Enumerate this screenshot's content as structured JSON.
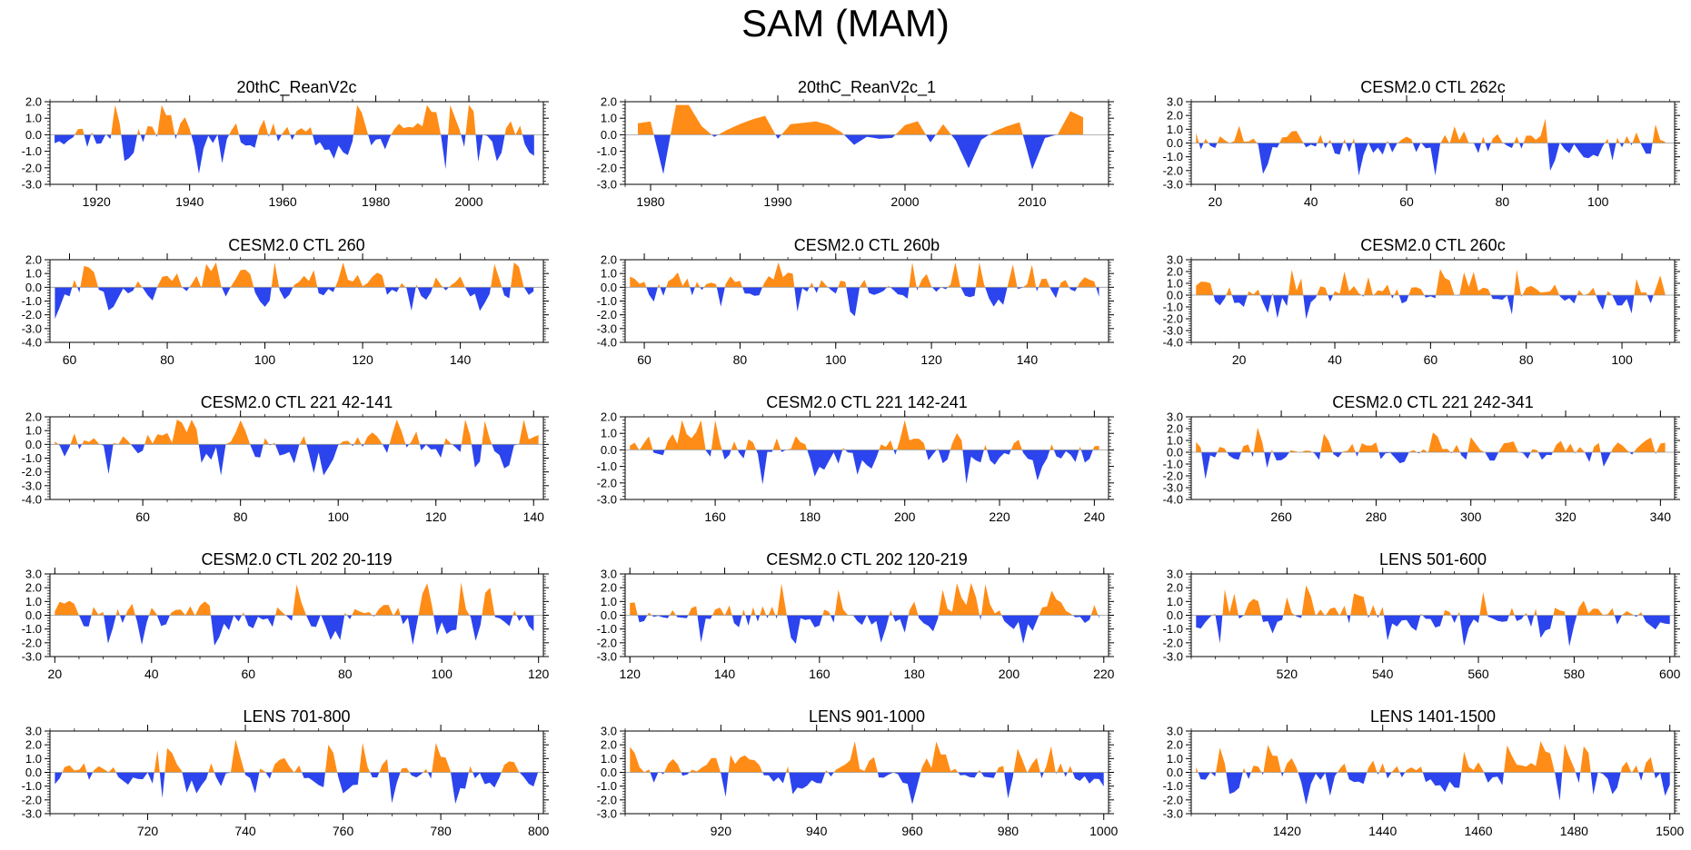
{
  "figure_title": "SAM (MAM)",
  "colors": {
    "positive": "#ff8c16",
    "negative": "#2b44ee",
    "axis": "#000000",
    "zero_line": "#999999"
  },
  "chart_data": [
    {
      "type": "area",
      "title": "20thC_ReanV2c",
      "xlim": [
        1910,
        2016
      ],
      "ylim": [
        -3.0,
        2.0
      ],
      "yticks": [
        2.0,
        1.0,
        0.0,
        -1.0,
        -2.0,
        -3.0
      ],
      "ytick_labels": [
        "2.0",
        "1.0",
        "0.0",
        "-1.0",
        "-2.0",
        "-3.0"
      ],
      "xticks": [
        1920,
        1940,
        1960,
        1980,
        2000
      ],
      "xtick_labels": [
        "1920",
        "1940",
        "1960",
        "1980",
        "2000"
      ],
      "seed": 3,
      "x_start": 1911,
      "x_end": 2014,
      "series": {
        "name": "SAM",
        "values": []
      }
    },
    {
      "type": "area",
      "title": "20thC_ReanV2c_1",
      "xlim": [
        1978,
        2016
      ],
      "ylim": [
        -3.0,
        2.0
      ],
      "yticks": [
        2.0,
        1.0,
        0.0,
        -1.0,
        -2.0,
        -3.0
      ],
      "ytick_labels": [
        "2.0",
        "1.0",
        "0.0",
        "-1.0",
        "-2.0",
        "-3.0"
      ],
      "xticks": [
        1980,
        1990,
        2000,
        2010
      ],
      "xtick_labels": [
        "1980",
        "1990",
        "2000",
        "2010"
      ],
      "seed": 5,
      "x_start": 1979,
      "x_end": 2014,
      "series": {
        "name": "SAM",
        "values": []
      }
    },
    {
      "type": "area",
      "title": "CESM2.0 CTL 262c",
      "xlim": [
        15,
        116
      ],
      "ylim": [
        -3.0,
        3.0
      ],
      "yticks": [
        3.0,
        2.0,
        1.0,
        0.0,
        -1.0,
        -2.0,
        -3.0
      ],
      "ytick_labels": [
        "3.0",
        "2.0",
        "1.0",
        "0.0",
        "-1.0",
        "-2.0",
        "-3.0"
      ],
      "xticks": [
        20,
        40,
        60,
        80,
        100
      ],
      "xtick_labels": [
        "20",
        "40",
        "60",
        "80",
        "100"
      ],
      "seed": 11,
      "x_start": 16,
      "x_end": 114,
      "series": {
        "name": "SAM",
        "values": []
      }
    },
    {
      "type": "area",
      "title": "CESM2.0 CTL 260",
      "xlim": [
        56,
        157
      ],
      "ylim": [
        -4.0,
        2.0
      ],
      "yticks": [
        2.0,
        1.0,
        0.0,
        -1.0,
        -2.0,
        -3.0,
        -4.0
      ],
      "ytick_labels": [
        "2.0",
        "1.0",
        "0.0",
        "-1.0",
        "-2.0",
        "-3.0",
        "-4.0"
      ],
      "xticks": [
        60,
        80,
        100,
        120,
        140
      ],
      "xtick_labels": [
        "60",
        "80",
        "100",
        "120",
        "140"
      ],
      "seed": 17,
      "x_start": 57,
      "x_end": 155,
      "series": {
        "name": "SAM",
        "values": []
      }
    },
    {
      "type": "area",
      "title": "CESM2.0 CTL 260b",
      "xlim": [
        56,
        157
      ],
      "ylim": [
        -4.0,
        2.0
      ],
      "yticks": [
        2.0,
        1.0,
        0.0,
        -1.0,
        -2.0,
        -3.0,
        -4.0
      ],
      "ytick_labels": [
        "2.0",
        "1.0",
        "0.0",
        "-1.0",
        "-2.0",
        "-3.0",
        "-4.0"
      ],
      "xticks": [
        60,
        80,
        100,
        120,
        140
      ],
      "xtick_labels": [
        "60",
        "80",
        "100",
        "120",
        "140"
      ],
      "seed": 23,
      "x_start": 57,
      "x_end": 155,
      "series": {
        "name": "SAM",
        "values": []
      }
    },
    {
      "type": "area",
      "title": "CESM2.0 CTL 260c",
      "xlim": [
        10,
        111
      ],
      "ylim": [
        -4.0,
        3.0
      ],
      "yticks": [
        3.0,
        2.0,
        1.0,
        0.0,
        -1.0,
        -2.0,
        -3.0,
        -4.0
      ],
      "ytick_labels": [
        "3.0",
        "2.0",
        "1.0",
        "0.0",
        "-1.0",
        "-2.0",
        "-3.0",
        "-4.0"
      ],
      "xticks": [
        20,
        40,
        60,
        80,
        100
      ],
      "xtick_labels": [
        "20",
        "40",
        "60",
        "80",
        "100"
      ],
      "seed": 29,
      "x_start": 11,
      "x_end": 109,
      "series": {
        "name": "SAM",
        "values": []
      }
    },
    {
      "type": "area",
      "title": "CESM2.0 CTL 221 42-141",
      "xlim": [
        41,
        142
      ],
      "ylim": [
        -4.0,
        2.0
      ],
      "yticks": [
        2.0,
        1.0,
        0.0,
        -1.0,
        -2.0,
        -3.0,
        -4.0
      ],
      "ytick_labels": [
        "2.0",
        "1.0",
        "0.0",
        "-1.0",
        "-2.0",
        "-3.0",
        "-4.0"
      ],
      "xticks": [
        60,
        80,
        100,
        120,
        140
      ],
      "xtick_labels": [
        "60",
        "80",
        "100",
        "120",
        "140"
      ],
      "seed": 31,
      "x_start": 42,
      "x_end": 141,
      "series": {
        "name": "SAM",
        "values": []
      }
    },
    {
      "type": "area",
      "title": "CESM2.0 CTL 221 142-241",
      "xlim": [
        141,
        243
      ],
      "ylim": [
        -3.0,
        2.0
      ],
      "yticks": [
        2.0,
        1.0,
        0.0,
        -1.0,
        -2.0,
        -3.0
      ],
      "ytick_labels": [
        "2.0",
        "1.0",
        "0.0",
        "-1.0",
        "-2.0",
        "-3.0"
      ],
      "xticks": [
        160,
        180,
        200,
        220,
        240
      ],
      "xtick_labels": [
        "160",
        "180",
        "200",
        "220",
        "240"
      ],
      "seed": 37,
      "x_start": 142,
      "x_end": 241,
      "series": {
        "name": "SAM",
        "values": []
      }
    },
    {
      "type": "area",
      "title": "CESM2.0 CTL 221 242-341",
      "xlim": [
        241,
        343
      ],
      "ylim": [
        -4.0,
        3.0
      ],
      "yticks": [
        3.0,
        2.0,
        1.0,
        0.0,
        -1.0,
        -2.0,
        -3.0,
        -4.0
      ],
      "ytick_labels": [
        "3.0",
        "2.0",
        "1.0",
        "0.0",
        "-1.0",
        "-2.0",
        "-3.0",
        "-4.0"
      ],
      "xticks": [
        260,
        280,
        300,
        320,
        340
      ],
      "xtick_labels": [
        "260",
        "280",
        "300",
        "320",
        "340"
      ],
      "seed": 41,
      "x_start": 242,
      "x_end": 341,
      "series": {
        "name": "SAM",
        "values": []
      }
    },
    {
      "type": "area",
      "title": "CESM2.0 CTL 202 20-119",
      "xlim": [
        19,
        121
      ],
      "ylim": [
        -3.0,
        3.0
      ],
      "yticks": [
        3.0,
        2.0,
        1.0,
        0.0,
        -1.0,
        -2.0,
        -3.0
      ],
      "ytick_labels": [
        "3.0",
        "2.0",
        "1.0",
        "0.0",
        "-1.0",
        "-2.0",
        "-3.0"
      ],
      "xticks": [
        20,
        40,
        60,
        80,
        100,
        120
      ],
      "xtick_labels": [
        "20",
        "40",
        "60",
        "80",
        "100",
        "120"
      ],
      "seed": 43,
      "x_start": 20,
      "x_end": 119,
      "series": {
        "name": "SAM",
        "values": []
      }
    },
    {
      "type": "area",
      "title": "CESM2.0 CTL 202 120-219",
      "xlim": [
        119,
        221
      ],
      "ylim": [
        -3.0,
        3.0
      ],
      "yticks": [
        3.0,
        2.0,
        1.0,
        0.0,
        -1.0,
        -2.0,
        -3.0
      ],
      "ytick_labels": [
        "3.0",
        "2.0",
        "1.0",
        "0.0",
        "-1.0",
        "-2.0",
        "-3.0"
      ],
      "xticks": [
        120,
        140,
        160,
        180,
        200,
        220
      ],
      "xtick_labels": [
        "120",
        "140",
        "160",
        "180",
        "200",
        "220"
      ],
      "seed": 47,
      "x_start": 120,
      "x_end": 219,
      "series": {
        "name": "SAM",
        "values": []
      }
    },
    {
      "type": "area",
      "title": "LENS 501-600",
      "xlim": [
        500,
        601
      ],
      "ylim": [
        -3.0,
        3.0
      ],
      "yticks": [
        3.0,
        2.0,
        1.0,
        0.0,
        -1.0,
        -2.0,
        -3.0
      ],
      "ytick_labels": [
        "3.0",
        "2.0",
        "1.0",
        "0.0",
        "-1.0",
        "-2.0",
        "-3.0"
      ],
      "xticks": [
        520,
        540,
        560,
        580,
        600
      ],
      "xtick_labels": [
        "520",
        "540",
        "560",
        "580",
        "600"
      ],
      "seed": 53,
      "x_start": 501,
      "x_end": 600,
      "series": {
        "name": "SAM",
        "values": []
      }
    },
    {
      "type": "area",
      "title": "LENS 701-800",
      "xlim": [
        700,
        801
      ],
      "ylim": [
        -3.0,
        3.0
      ],
      "yticks": [
        3.0,
        2.0,
        1.0,
        0.0,
        -1.0,
        -2.0,
        -3.0
      ],
      "ytick_labels": [
        "3.0",
        "2.0",
        "1.0",
        "0.0",
        "-1.0",
        "-2.0",
        "-3.0"
      ],
      "xticks": [
        720,
        740,
        760,
        780,
        800
      ],
      "xtick_labels": [
        "720",
        "740",
        "760",
        "780",
        "800"
      ],
      "seed": 59,
      "x_start": 701,
      "x_end": 800,
      "series": {
        "name": "SAM",
        "values": []
      }
    },
    {
      "type": "area",
      "title": "LENS 901-1000",
      "xlim": [
        900,
        1001
      ],
      "ylim": [
        -3.0,
        3.0
      ],
      "yticks": [
        3.0,
        2.0,
        1.0,
        0.0,
        -1.0,
        -2.0,
        -3.0
      ],
      "ytick_labels": [
        "3.0",
        "2.0",
        "1.0",
        "0.0",
        "-1.0",
        "-2.0",
        "-3.0"
      ],
      "xticks": [
        920,
        940,
        960,
        980,
        1000
      ],
      "xtick_labels": [
        "920",
        "940",
        "960",
        "980",
        "1000"
      ],
      "seed": 61,
      "x_start": 901,
      "x_end": 1000,
      "series": {
        "name": "SAM",
        "values": []
      }
    },
    {
      "type": "area",
      "title": "LENS 1401-1500",
      "xlim": [
        1400,
        1501
      ],
      "ylim": [
        -3.0,
        3.0
      ],
      "yticks": [
        3.0,
        2.0,
        1.0,
        0.0,
        -1.0,
        -2.0,
        -3.0
      ],
      "ytick_labels": [
        "3.0",
        "2.0",
        "1.0",
        "0.0",
        "-1.0",
        "-2.0",
        "-3.0"
      ],
      "xticks": [
        1420,
        1440,
        1460,
        1480,
        1500
      ],
      "xtick_labels": [
        "1420",
        "1440",
        "1460",
        "1480",
        "1500"
      ],
      "seed": 67,
      "x_start": 1401,
      "x_end": 1500,
      "series": {
        "name": "SAM",
        "values": []
      }
    }
  ]
}
